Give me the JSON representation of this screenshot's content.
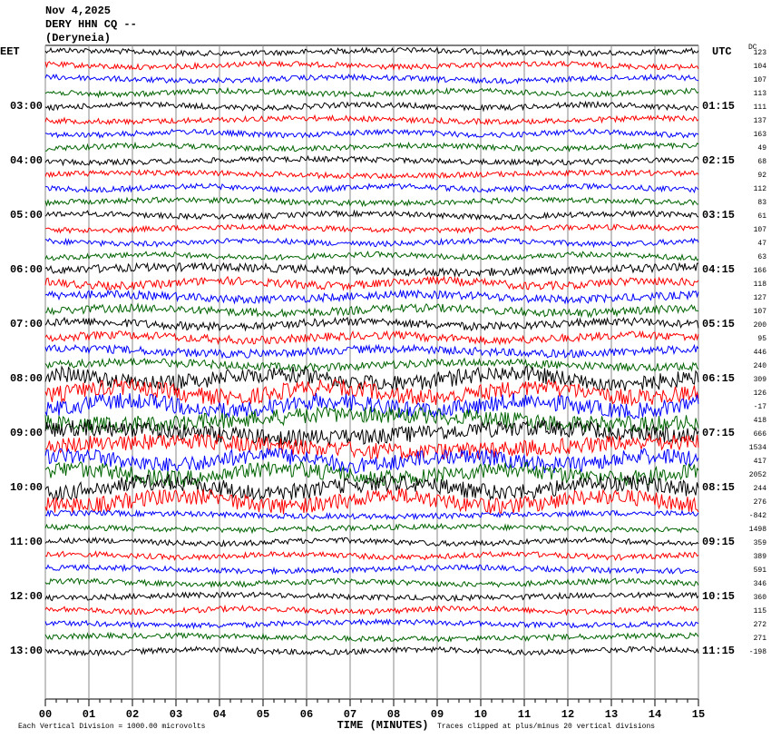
{
  "chart_data": {
    "type": "helicorder",
    "title_lines": [
      "Nov 4,2025",
      "DERY HHN CQ --",
      "(Deryneia)"
    ],
    "left_axis_label": "EET",
    "right_axis_label": "UTC",
    "dc_label": "DC",
    "trace_colors": [
      "#000000",
      "#ff0000",
      "#0000ff",
      "#006400"
    ],
    "left_labels": [
      null,
      null,
      null,
      null,
      "03:00",
      null,
      null,
      null,
      "04:00",
      null,
      null,
      null,
      "05:00",
      null,
      null,
      null,
      "06:00",
      null,
      null,
      null,
      "07:00",
      null,
      null,
      null,
      "08:00",
      null,
      null,
      null,
      "09:00",
      null,
      null,
      null,
      "10:00",
      null,
      null,
      null,
      "11:00",
      null,
      null,
      null,
      "12:00",
      null,
      null,
      null,
      "13:00"
    ],
    "right_labels": [
      null,
      null,
      null,
      null,
      "01:15",
      null,
      null,
      null,
      "02:15",
      null,
      null,
      null,
      "03:15",
      null,
      null,
      null,
      "04:15",
      null,
      null,
      null,
      "05:15",
      null,
      null,
      null,
      "06:15",
      null,
      null,
      null,
      "07:15",
      null,
      null,
      null,
      "08:15",
      null,
      null,
      null,
      "09:15",
      null,
      null,
      null,
      "10:15",
      null,
      null,
      null,
      "11:15"
    ],
    "dc_offsets": [
      123,
      104,
      107,
      113,
      111,
      137,
      163,
      49,
      68,
      92,
      112,
      83,
      61,
      107,
      47,
      63,
      166,
      118,
      127,
      107,
      200,
      95,
      446,
      240,
      309,
      126,
      -17,
      418,
      666,
      1534,
      417,
      2052,
      244,
      276,
      -842,
      1498,
      359,
      389,
      591,
      346,
      360,
      115,
      272,
      271,
      -198
    ],
    "xticks": [
      "00",
      "01",
      "02",
      "03",
      "04",
      "05",
      "06",
      "07",
      "08",
      "09",
      "10",
      "11",
      "12",
      "13",
      "14",
      "15"
    ],
    "xlabel": "TIME (MINUTES)",
    "scale_note": "Each Vertical Division = 1000.00 microvolts",
    "clip_note": "Traces clipped at plus/minus 20 vertical divisions"
  }
}
